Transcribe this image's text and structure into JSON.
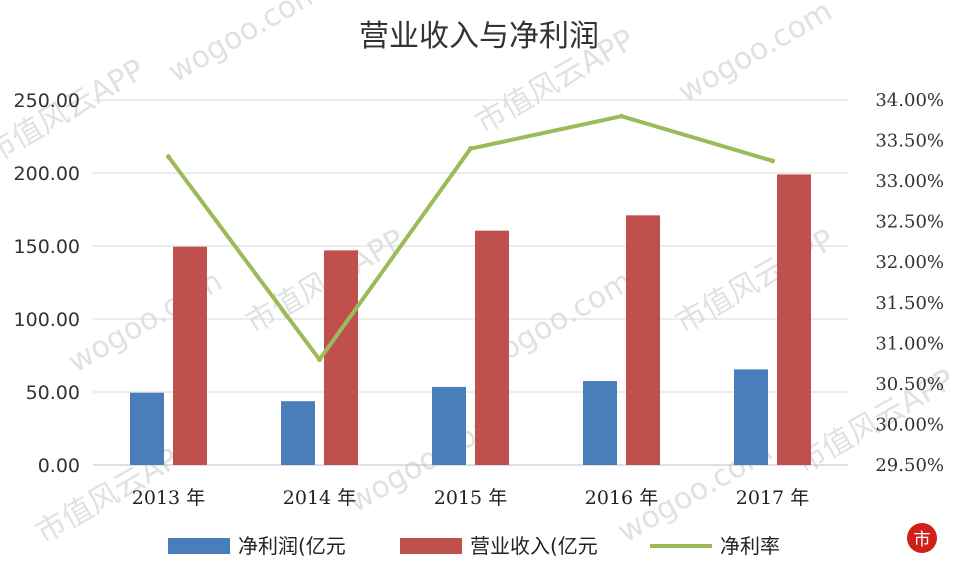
{
  "chart_data": {
    "type": "bar",
    "title": "营业收入与净利润",
    "categories": [
      "2013 年",
      "2014 年",
      "2015 年",
      "2016 年",
      "2017 年"
    ],
    "series": [
      {
        "name": "净利润(亿元",
        "kind": "bar",
        "axis": "left",
        "color": "#4a7ebb",
        "values": [
          49.5,
          43.7,
          53.5,
          57.5,
          65.5
        ]
      },
      {
        "name": "营业收入(亿元",
        "kind": "bar",
        "axis": "left",
        "color": "#c0504d",
        "values": [
          149.5,
          147,
          160.5,
          171,
          199
        ]
      },
      {
        "name": "净利率",
        "kind": "line",
        "axis": "right",
        "color": "#9bbb59",
        "values": [
          33.3,
          30.8,
          33.4,
          33.8,
          33.25
        ]
      }
    ],
    "left_axis": {
      "ylim": [
        0,
        250
      ],
      "ticks": [
        "0.00",
        "50.00",
        "100.00",
        "150.00",
        "200.00",
        "250.00"
      ]
    },
    "right_axis": {
      "ylim": [
        29.5,
        34.0
      ],
      "ticks": [
        "29.50%",
        "30.00%",
        "30.50%",
        "31.00%",
        "31.50%",
        "32.00%",
        "32.50%",
        "33.00%",
        "33.50%",
        "34.00%"
      ]
    },
    "grid": true,
    "legend": "bottom"
  },
  "watermark": {
    "app": "市值风云APP",
    "site": "wogoo.com"
  }
}
